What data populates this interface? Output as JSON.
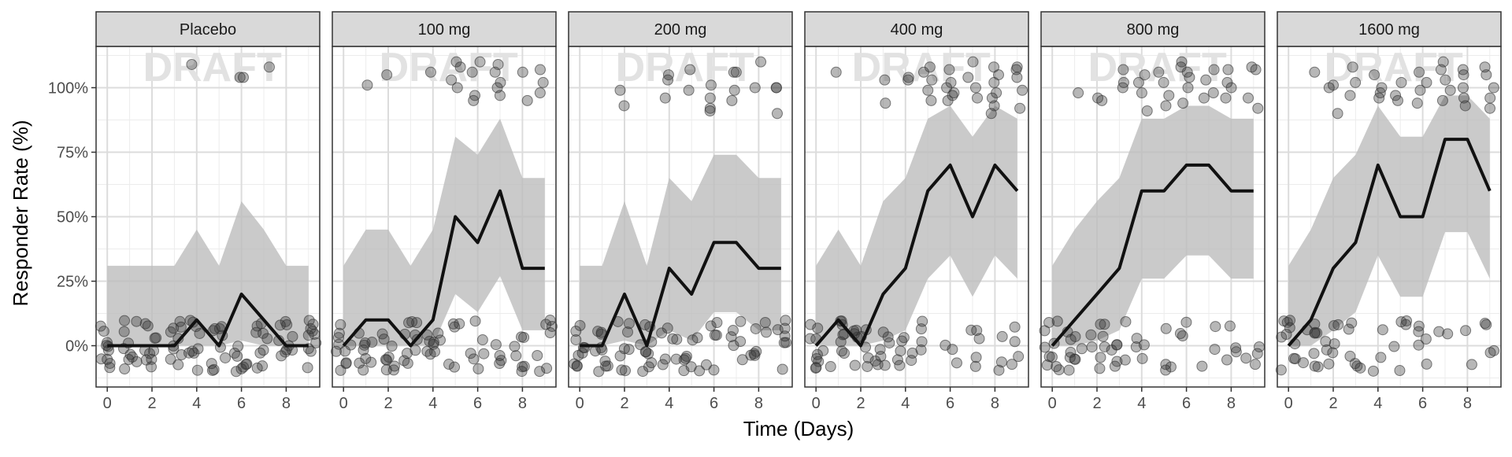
{
  "chart_data": {
    "type": "line",
    "xlabel": "Time (Days)",
    "ylabel": "Responder Rate (%)",
    "watermark": "DRAFT",
    "xlim": [
      -0.5,
      9.5
    ],
    "ylim": [
      -0.16,
      1.16
    ],
    "x_ticks": [
      0,
      2,
      4,
      6,
      8
    ],
    "y_ticks": [
      0,
      0.25,
      0.5,
      0.75,
      1.0
    ],
    "y_tick_labels": [
      "0%",
      "25%",
      "50%",
      "75%",
      "100%"
    ],
    "x": [
      0,
      1,
      2,
      3,
      4,
      5,
      6,
      7,
      8,
      9
    ],
    "colors": {
      "line": "#111111",
      "band": "#bdbdbd",
      "points": "#303030",
      "strip": "#d9d9d9",
      "grid": "#dcdcdc",
      "watermark": "#e2e2e2"
    },
    "panels": [
      {
        "label": "Placebo",
        "rate": [
          0,
          0,
          0,
          0,
          0.1,
          0,
          0.2,
          0.1,
          0,
          0
        ],
        "lower": [
          0,
          0,
          0,
          0,
          0,
          0,
          0.02,
          0,
          0,
          0
        ],
        "upper": [
          0.31,
          0.31,
          0.31,
          0.31,
          0.45,
          0.31,
          0.56,
          0.45,
          0.31,
          0.31
        ],
        "responders": [
          [
            4,
            1.09
          ],
          [
            6,
            1.04
          ],
          [
            6.1,
            1.04
          ],
          [
            7,
            1.08
          ]
        ]
      },
      {
        "label": "100 mg",
        "rate": [
          0,
          0.1,
          0.1,
          0,
          0.1,
          0.5,
          0.4,
          0.6,
          0.3,
          0.3
        ],
        "lower": [
          0,
          0,
          0,
          0,
          0,
          0.2,
          0.13,
          0.27,
          0.06,
          0.06
        ],
        "upper": [
          0.31,
          0.45,
          0.45,
          0.31,
          0.45,
          0.81,
          0.74,
          0.88,
          0.65,
          0.65
        ],
        "responders": [
          [
            1,
            1.01
          ],
          [
            2,
            1.05
          ],
          [
            4,
            1.06
          ],
          [
            5,
            1.08
          ],
          [
            5,
            1.1
          ],
          [
            5,
            1.03
          ],
          [
            5,
            1.0
          ],
          [
            6,
            1.1
          ],
          [
            6,
            1.06
          ],
          [
            6,
            0.97
          ],
          [
            6,
            0.95
          ],
          [
            7,
            1.09
          ],
          [
            7,
            1.06
          ],
          [
            7,
            1.0
          ],
          [
            7,
            0.97
          ],
          [
            7,
            1.02
          ],
          [
            8,
            1.06
          ],
          [
            8,
            0.95
          ],
          [
            9,
            1.07
          ],
          [
            9,
            1.02
          ],
          [
            9,
            0.98
          ]
        ]
      },
      {
        "label": "200 mg",
        "rate": [
          0,
          0,
          0.2,
          0,
          0.3,
          0.2,
          0.4,
          0.4,
          0.3,
          0.3
        ],
        "lower": [
          0,
          0,
          0.02,
          0,
          0.06,
          0.02,
          0.13,
          0.13,
          0.06,
          0.06
        ],
        "upper": [
          0.31,
          0.31,
          0.56,
          0.31,
          0.65,
          0.56,
          0.74,
          0.74,
          0.65,
          0.65
        ],
        "responders": [
          [
            2,
            0.99
          ],
          [
            2,
            0.93
          ],
          [
            4,
            1.05
          ],
          [
            4,
            1.03
          ],
          [
            4,
            0.96
          ],
          [
            5,
            1.07
          ],
          [
            5,
            0.99
          ],
          [
            6,
            1.01
          ],
          [
            6,
            0.96
          ],
          [
            6,
            0.91
          ],
          [
            6,
            0.92
          ],
          [
            7,
            1.06
          ],
          [
            7,
            1.06
          ],
          [
            7,
            0.99
          ],
          [
            7,
            0.95
          ],
          [
            8,
            1.1
          ],
          [
            8,
            1.0
          ],
          [
            9,
            1.0
          ],
          [
            9,
            0.9
          ],
          [
            9,
            1.0
          ]
        ]
      },
      {
        "label": "400 mg",
        "rate": [
          0,
          0.1,
          0,
          0.2,
          0.3,
          0.6,
          0.7,
          0.5,
          0.7,
          0.6
        ],
        "lower": [
          0,
          0,
          0,
          0.02,
          0.06,
          0.26,
          0.35,
          0.19,
          0.35,
          0.26
        ],
        "upper": [
          0.31,
          0.45,
          0.31,
          0.56,
          0.65,
          0.88,
          0.93,
          0.81,
          0.93,
          0.88
        ],
        "responders": [
          [
            1,
            1.06
          ],
          [
            3,
            1.03
          ],
          [
            3,
            0.94
          ],
          [
            4,
            1.04
          ],
          [
            4,
            1.03
          ],
          [
            5,
            1.08
          ],
          [
            5,
            1.06
          ],
          [
            5,
            1.03
          ],
          [
            5,
            0.99
          ],
          [
            5,
            0.95
          ],
          [
            6,
            1.07
          ],
          [
            6,
            1.02
          ],
          [
            6,
            1.0
          ],
          [
            6,
            0.98
          ],
          [
            6,
            0.95
          ],
          [
            6,
            0.97
          ],
          [
            7,
            1.1
          ],
          [
            7,
            1.04
          ],
          [
            7,
            1.0
          ],
          [
            7,
            0.96
          ],
          [
            8,
            1.08
          ],
          [
            8,
            1.05
          ],
          [
            8,
            1.02
          ],
          [
            8,
            0.98
          ],
          [
            8,
            0.96
          ],
          [
            8,
            0.93
          ],
          [
            8,
            0.9
          ],
          [
            9,
            1.08
          ],
          [
            9,
            1.07
          ],
          [
            9,
            1.04
          ],
          [
            9,
            0.99
          ],
          [
            9,
            0.92
          ]
        ]
      },
      {
        "label": "800 mg",
        "rate": [
          0,
          0.1,
          0.2,
          0.3,
          0.6,
          0.6,
          0.7,
          0.7,
          0.6,
          0.6
        ],
        "lower": [
          0,
          0,
          0.02,
          0.06,
          0.26,
          0.26,
          0.35,
          0.35,
          0.26,
          0.26
        ],
        "upper": [
          0.31,
          0.45,
          0.56,
          0.65,
          0.88,
          0.88,
          0.93,
          0.93,
          0.88,
          0.88
        ],
        "responders": [
          [
            1,
            0.98
          ],
          [
            2,
            0.96
          ],
          [
            2,
            0.95
          ],
          [
            3,
            1.07
          ],
          [
            3,
            1.02
          ],
          [
            3,
            1.0
          ],
          [
            4,
            1.05
          ],
          [
            4,
            1.02
          ],
          [
            4,
            0.98
          ],
          [
            4,
            0.91
          ],
          [
            5,
            1.06
          ],
          [
            5,
            1.02
          ],
          [
            5,
            0.97
          ],
          [
            5,
            0.93
          ],
          [
            6,
            1.1
          ],
          [
            6,
            1.08
          ],
          [
            6,
            1.06
          ],
          [
            6,
            1.04
          ],
          [
            6,
            1.0
          ],
          [
            6,
            0.94
          ],
          [
            7,
            1.07
          ],
          [
            7,
            1.03
          ],
          [
            7,
            0.98
          ],
          [
            7,
            0.96
          ],
          [
            8,
            1.07
          ],
          [
            8,
            1.02
          ],
          [
            8,
            1.0
          ],
          [
            8,
            0.96
          ],
          [
            9,
            1.08
          ],
          [
            9,
            1.07
          ],
          [
            9,
            0.96
          ],
          [
            9,
            0.92
          ]
        ]
      },
      {
        "label": "1600 mg",
        "rate": [
          0,
          0.1,
          0.3,
          0.4,
          0.7,
          0.5,
          0.5,
          0.8,
          0.8,
          0.6
        ],
        "lower": [
          0,
          0,
          0.06,
          0.13,
          0.35,
          0.19,
          0.19,
          0.44,
          0.44,
          0.26
        ],
        "upper": [
          0.31,
          0.45,
          0.65,
          0.74,
          0.93,
          0.81,
          0.81,
          0.97,
          0.97,
          0.88
        ],
        "responders": [
          [
            1,
            1.06
          ],
          [
            2,
            1.01
          ],
          [
            2,
            1.0
          ],
          [
            2,
            0.9
          ],
          [
            3,
            1.08
          ],
          [
            3,
            1.02
          ],
          [
            3,
            0.97
          ],
          [
            4,
            1.05
          ],
          [
            4,
            1.0
          ],
          [
            4,
            0.96
          ],
          [
            4,
            0.98
          ],
          [
            5,
            1.02
          ],
          [
            5,
            0.97
          ],
          [
            5,
            0.95
          ],
          [
            6,
            1.06
          ],
          [
            6,
            1.02
          ],
          [
            6,
            0.99
          ],
          [
            6,
            0.94
          ],
          [
            7,
            1.1
          ],
          [
            7,
            1.07
          ],
          [
            7,
            1.03
          ],
          [
            7,
            0.99
          ],
          [
            7,
            0.95
          ],
          [
            8,
            1.07
          ],
          [
            8,
            1.05
          ],
          [
            8,
            1.0
          ],
          [
            8,
            0.96
          ],
          [
            8,
            0.93
          ],
          [
            9,
            1.08
          ],
          [
            9,
            1.05
          ],
          [
            9,
            1.0
          ],
          [
            9,
            0.96
          ],
          [
            9,
            0.92
          ]
        ]
      }
    ]
  }
}
